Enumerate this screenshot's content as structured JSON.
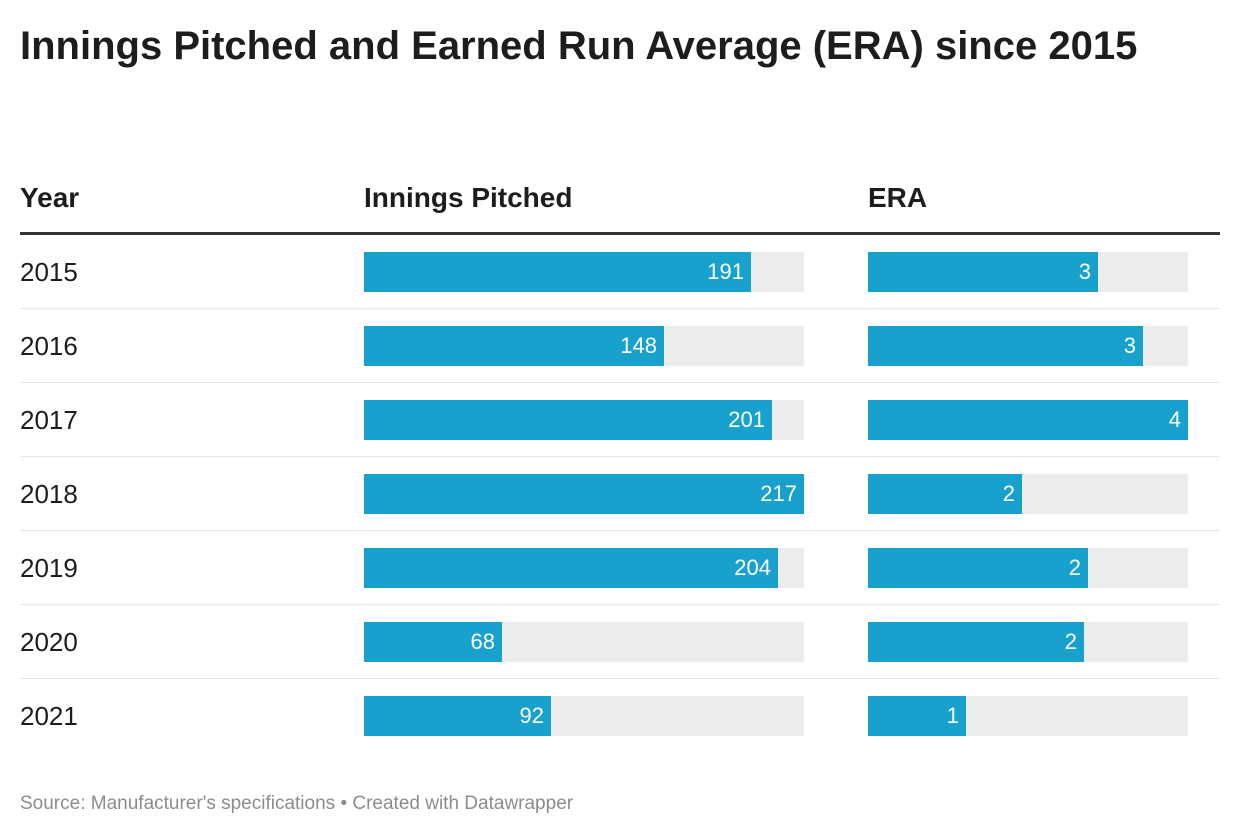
{
  "title": "Innings Pitched and Earned Run Average (ERA) since 2015",
  "footer": "Source: Manufacturer's specifications • Created with Datawrapper",
  "colors": {
    "bar": "#18a1cd",
    "track": "#ececec",
    "text": "#1d1d1d",
    "footer": "#8c8c8c"
  },
  "chart_data": {
    "type": "table",
    "columns": [
      "Year",
      "Innings Pitched",
      "ERA"
    ],
    "rows": [
      {
        "year": "2015",
        "innings_pitched": 191,
        "era": 3,
        "era_fill": 0.72
      },
      {
        "year": "2016",
        "innings_pitched": 148,
        "era": 3,
        "era_fill": 0.86
      },
      {
        "year": "2017",
        "innings_pitched": 201,
        "era": 4,
        "era_fill": 1.0
      },
      {
        "year": "2018",
        "innings_pitched": 217,
        "era": 2,
        "era_fill": 0.48
      },
      {
        "year": "2019",
        "innings_pitched": 204,
        "era": 2,
        "era_fill": 0.688
      },
      {
        "year": "2020",
        "innings_pitched": 68,
        "era": 2,
        "era_fill": 0.675
      },
      {
        "year": "2021",
        "innings_pitched": 92,
        "era": 1,
        "era_fill": 0.306
      }
    ],
    "innings_max": 217
  }
}
